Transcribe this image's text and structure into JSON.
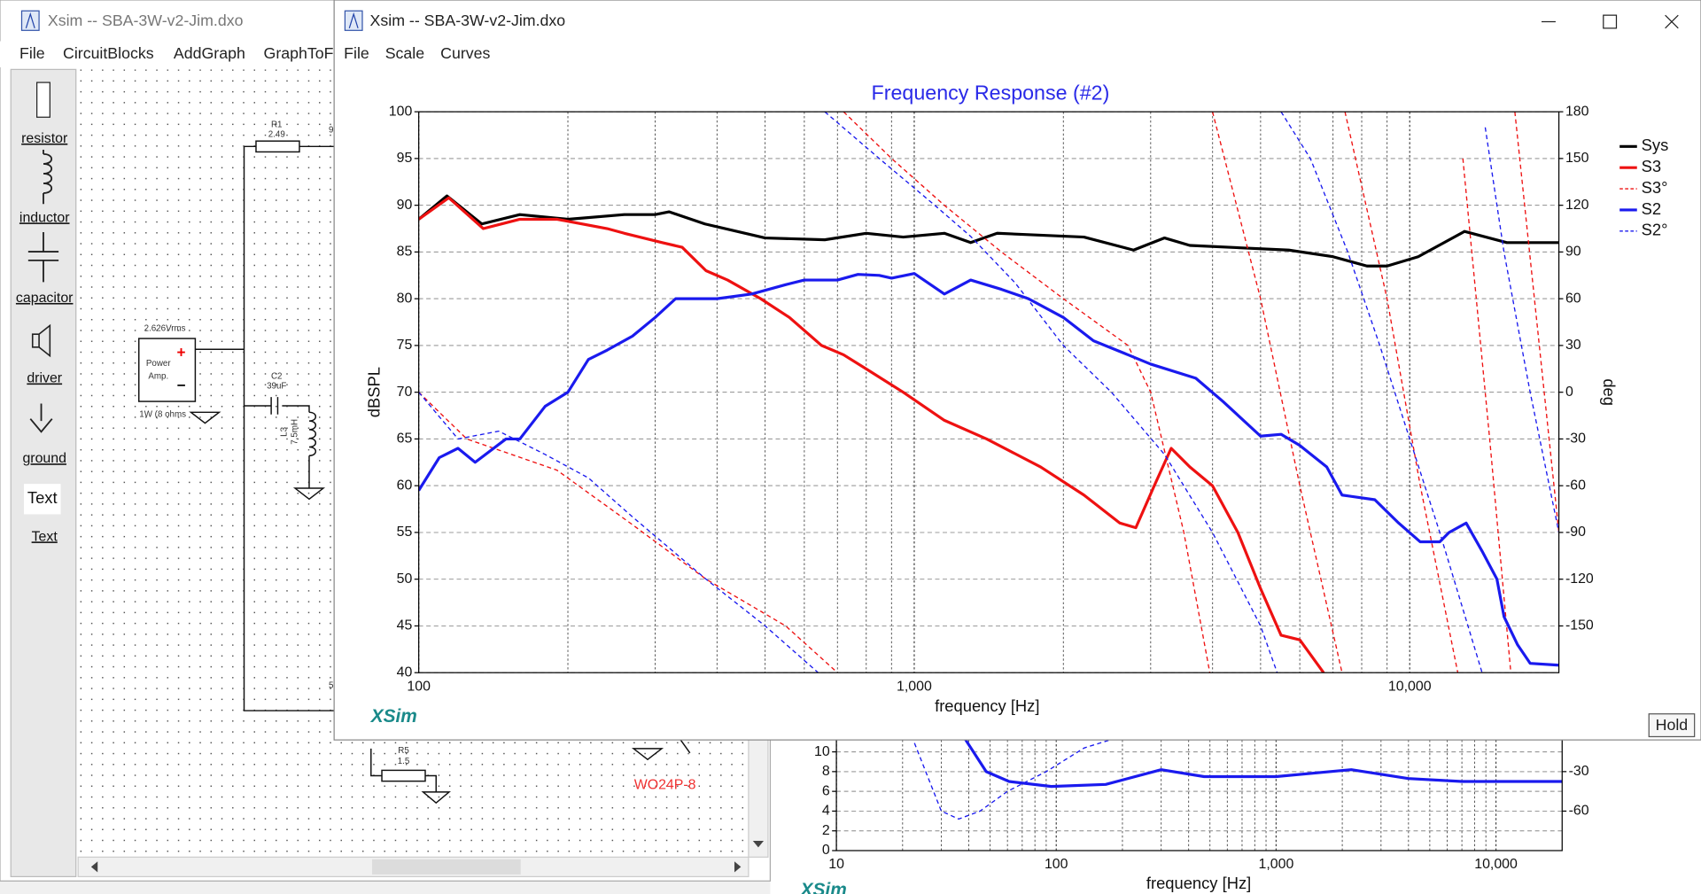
{
  "left_window": {
    "title": "Xsim -- SBA-3W-v2-Jim.dxo",
    "menu": [
      "File",
      "CircuitBlocks",
      "AddGraph",
      "GraphToFr"
    ],
    "tools": [
      "resistor",
      "inductor",
      "capacitor",
      "driver",
      "ground",
      "Text",
      "Text"
    ]
  },
  "schematic": {
    "labels": [
      "R1",
      "2.49",
      "2.626Vrms",
      "Power",
      "Amp.",
      "1W (8 ohms",
      "C2",
      "39uF",
      "L3",
      "7.5mH",
      "R5",
      "1.5",
      "WO24P-8",
      "5",
      "9"
    ]
  },
  "main_window": {
    "title": "Xsim -- SBA-3W-v2-Jim.dxo",
    "menu": [
      "File",
      "Scale",
      "Curves"
    ],
    "button": "Hold"
  },
  "chart_data": [
    {
      "type": "line",
      "title": "Frequency Response (#2)",
      "xlabel": "frequency [Hz]",
      "ylabel": "dBSPL",
      "y2label": "deg",
      "watermark": "XSim",
      "xscale": "log",
      "xlim": [
        100,
        20000
      ],
      "xticks": [
        100,
        {
          "value": 1000,
          "label": "1,000"
        },
        {
          "value": 10000,
          "label": "10,000"
        }
      ],
      "xgrid": [
        200,
        300,
        400,
        500,
        600,
        700,
        800,
        900,
        2000,
        3000,
        4000,
        5000,
        6000,
        7000,
        8000,
        9000
      ],
      "ylim": [
        40,
        100
      ],
      "yticks": [
        40,
        45,
        50,
        55,
        60,
        65,
        70,
        75,
        80,
        85,
        90,
        95,
        100
      ],
      "y2lim": [
        -180,
        180
      ],
      "y2ticks": [
        -150,
        -120,
        -90,
        -60,
        -30,
        0,
        30,
        60,
        90,
        120,
        150,
        180
      ],
      "grid": true,
      "legend": "right",
      "series": [
        {
          "name": "Sys",
          "color": "#000000",
          "style": "solid",
          "x": [
            100,
            114,
            134,
            160,
            200,
            260,
            300,
            320,
            378,
            500,
            660,
            800,
            950,
            1150,
            1300,
            1470,
            2200,
            2770,
            3200,
            3600,
            5700,
            7000,
            8200,
            9000,
            10400,
            12900,
            15700,
            20000
          ],
          "values": [
            88.5,
            91,
            88,
            89,
            88.5,
            89,
            89,
            89.3,
            88,
            86.5,
            86.3,
            87,
            86.6,
            87,
            86,
            87,
            86.6,
            85.2,
            86.5,
            85.7,
            85.2,
            84.5,
            83.5,
            83.5,
            84.5,
            87.2,
            86,
            86
          ]
        },
        {
          "name": "S3",
          "color": "#ee1111",
          "style": "solid",
          "x": [
            100,
            115,
            135,
            160,
            190,
            240,
            260,
            310,
            340,
            380,
            420,
            490,
            560,
            650,
            720,
            800,
            950,
            1150,
            1400,
            1800,
            2200,
            2600,
            2800,
            3050,
            3300,
            3600,
            4000,
            4500,
            5000,
            5500,
            6000,
            6700
          ],
          "values": [
            88.5,
            90.8,
            87.5,
            88.5,
            88.5,
            87.5,
            87,
            86,
            85.5,
            83,
            82,
            80,
            78,
            75,
            74,
            72.5,
            70,
            67,
            65,
            62,
            59,
            56,
            55.5,
            60,
            64,
            62,
            60,
            55,
            49,
            44,
            43.5,
            40
          ]
        },
        {
          "name": "S3°",
          "color": "#ee1111",
          "style": "dashed",
          "axis": "y2",
          "x": [
            100,
            125,
            190,
            270,
            380,
            550,
            700,
            710,
            720,
            900,
            1150,
            1500,
            2000,
            2700,
            3000,
            3500,
            3950,
            3975,
            4000,
            5000,
            6000,
            7300,
            7350,
            7400,
            9000,
            10500,
            12500,
            12650,
            12800,
            14500,
            16000,
            16150,
            16300,
            20000
          ],
          "values": [
            0,
            -30,
            -50,
            -85,
            -120,
            -150,
            -180,
            null,
            180,
            150,
            120,
            90,
            60,
            30,
            0,
            -90,
            -180,
            null,
            180,
            60,
            -60,
            -180,
            null,
            180,
            60,
            -60,
            -180,
            null,
            150,
            -30,
            -180,
            null,
            180,
            -90
          ]
        },
        {
          "name": "S2",
          "color": "#1a1aee",
          "style": "solid",
          "x": [
            100,
            110,
            120,
            130,
            150,
            160,
            180,
            200,
            220,
            240,
            270,
            300,
            330,
            350,
            400,
            470,
            550,
            600,
            700,
            770,
            850,
            900,
            1000,
            1150,
            1300,
            1500,
            1700,
            2000,
            2300,
            2700,
            3000,
            3700,
            4200,
            5000,
            5500,
            6000,
            6800,
            7300,
            8500,
            9500,
            10500,
            11500,
            12000,
            13000,
            14000,
            15000,
            15500,
            16500,
            17500,
            20000
          ],
          "values": [
            59.5,
            63,
            64,
            62.5,
            65,
            65,
            68.5,
            70,
            73.5,
            74.5,
            76,
            78,
            80,
            80,
            80,
            80.5,
            81.5,
            82,
            82,
            82.6,
            82.5,
            82.2,
            82.7,
            80.5,
            82,
            81,
            80,
            78,
            75.5,
            74,
            73,
            71.5,
            69,
            65.3,
            65.5,
            64.3,
            62,
            59,
            58.5,
            56,
            54,
            54,
            55,
            56,
            53,
            50,
            46,
            43,
            41,
            40.8
          ]
        },
        {
          "name": "S2°",
          "color": "#1a1aee",
          "style": "dashed",
          "axis": "y2",
          "x": [
            100,
            120,
            145,
            180,
            220,
            270,
            380,
            500,
            640,
            650,
            660,
            850,
            1100,
            1300,
            1600,
            2000,
            2500,
            3200,
            4000,
            5000,
            5400,
            5450,
            5500,
            6300,
            7500,
            8700,
            10000,
            11500,
            14000,
            14100,
            14200,
            15500,
            17500,
            20000
          ],
          "values": [
            0,
            -30,
            -25,
            -40,
            -55,
            -80,
            -120,
            -150,
            -180,
            null,
            180,
            150,
            120,
            100,
            70,
            30,
            0,
            -40,
            -90,
            -150,
            -180,
            null,
            180,
            150,
            90,
            30,
            -30,
            -90,
            -180,
            null,
            170,
            90,
            0,
            -90
          ]
        }
      ]
    },
    {
      "type": "line",
      "xlabel": "frequency [Hz]",
      "watermark": "XSim",
      "xscale": "log",
      "xlim": [
        10,
        20000
      ],
      "xticks": [
        10,
        100,
        {
          "value": 1000,
          "label": "1,000"
        },
        {
          "value": 10000,
          "label": "10,000"
        }
      ],
      "xgrid": [
        20,
        30,
        40,
        50,
        60,
        70,
        80,
        90,
        200,
        300,
        400,
        500,
        600,
        700,
        800,
        900,
        2000,
        3000,
        4000,
        5000,
        6000,
        7000,
        8000,
        9000
      ],
      "ylim": [
        0,
        20
      ],
      "yticks": [
        0,
        2,
        4,
        6,
        8,
        10
      ],
      "y2lim": [
        -90,
        60
      ],
      "y2ticks": [
        -60,
        -30
      ],
      "grid": true,
      "series": [
        {
          "color": "#1a1aee",
          "style": "solid",
          "x": [
            38,
            48,
            61,
            95,
            168,
            300,
            470,
            1000,
            2200,
            4000,
            7000,
            20000
          ],
          "values": [
            11.5,
            8,
            7,
            6.5,
            6.7,
            8.2,
            7.5,
            7.5,
            8.2,
            7.3,
            7,
            7
          ]
        },
        {
          "color": "#1a1aee",
          "style": "dashed",
          "axis": "y2",
          "x": [
            22,
            30,
            36,
            45,
            60,
            90,
            134,
            200
          ],
          "values": [
            -3,
            -60,
            -66,
            -60,
            -45,
            -30,
            -12,
            -3
          ]
        }
      ]
    }
  ]
}
